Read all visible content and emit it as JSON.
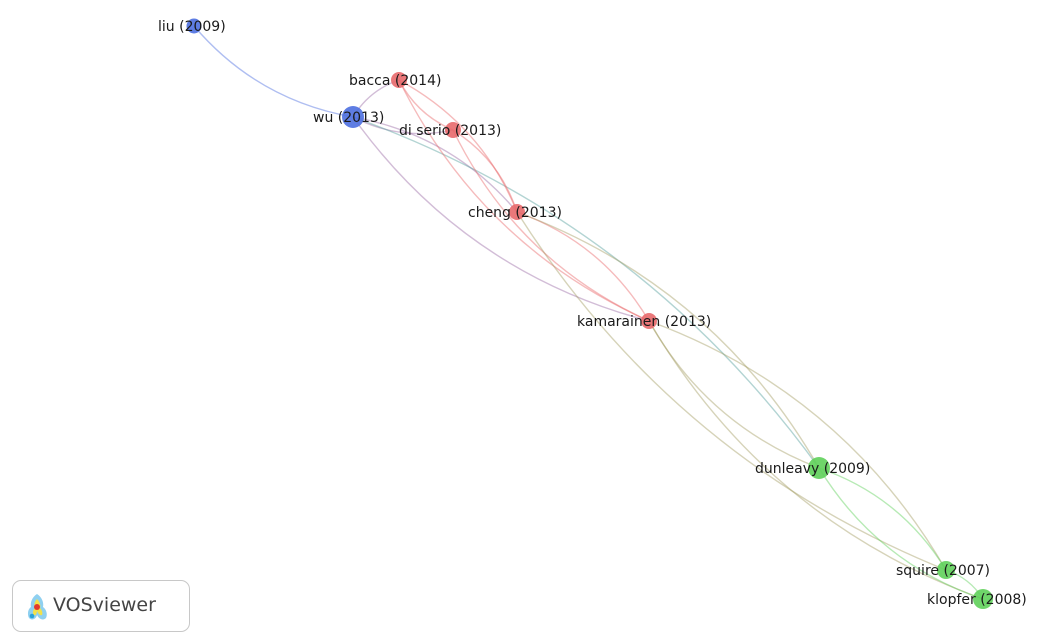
{
  "network": {
    "clusters": [
      {
        "id": "red",
        "color": "#e8696b"
      },
      {
        "id": "blue",
        "color": "#4d6fe0"
      },
      {
        "id": "green",
        "color": "#5fd05a"
      }
    ],
    "nodes": [
      {
        "id": "liu2009",
        "label": "liu (2009)",
        "cluster": "blue"
      },
      {
        "id": "wu2013",
        "label": "wu (2013)",
        "cluster": "blue"
      },
      {
        "id": "bacca2014",
        "label": "bacca (2014)",
        "cluster": "red"
      },
      {
        "id": "diserio2013",
        "label": "di serio (2013)",
        "cluster": "red"
      },
      {
        "id": "cheng2013",
        "label": "cheng (2013)",
        "cluster": "red"
      },
      {
        "id": "kamarainen2013",
        "label": "kamarainen (2013)",
        "cluster": "red"
      },
      {
        "id": "dunleavy2009",
        "label": "dunleavy (2009)",
        "cluster": "green"
      },
      {
        "id": "squire2007",
        "label": "squire (2007)",
        "cluster": "green"
      },
      {
        "id": "klopfer2008",
        "label": "klopfer (2008)",
        "cluster": "green"
      }
    ],
    "links": [
      [
        "liu2009",
        "wu2013"
      ],
      [
        "wu2013",
        "bacca2014"
      ],
      [
        "wu2013",
        "diserio2013"
      ],
      [
        "wu2013",
        "cheng2013"
      ],
      [
        "wu2013",
        "kamarainen2013"
      ],
      [
        "wu2013",
        "dunleavy2009"
      ],
      [
        "bacca2014",
        "diserio2013"
      ],
      [
        "bacca2014",
        "cheng2013"
      ],
      [
        "bacca2014",
        "kamarainen2013"
      ],
      [
        "diserio2013",
        "cheng2013"
      ],
      [
        "diserio2013",
        "kamarainen2013"
      ],
      [
        "cheng2013",
        "kamarainen2013"
      ],
      [
        "cheng2013",
        "squire2007"
      ],
      [
        "cheng2013",
        "dunleavy2009"
      ],
      [
        "kamarainen2013",
        "dunleavy2009"
      ],
      [
        "kamarainen2013",
        "squire2007"
      ],
      [
        "kamarainen2013",
        "klopfer2008"
      ],
      [
        "dunleavy2009",
        "squire2007"
      ],
      [
        "dunleavy2009",
        "klopfer2008"
      ],
      [
        "squire2007",
        "klopfer2008"
      ]
    ]
  },
  "branding": {
    "logo_text": "VOSviewer"
  }
}
